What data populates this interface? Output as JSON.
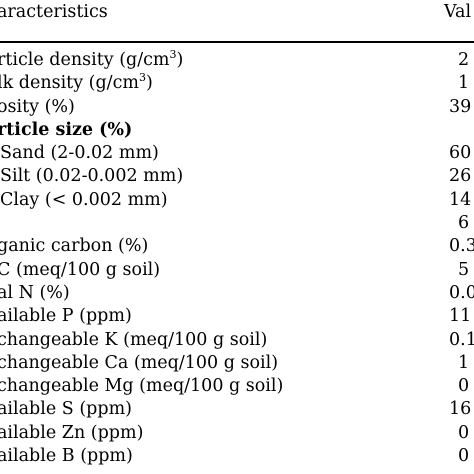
{
  "header": {
    "col1": "aracteristics",
    "col2": "Val"
  },
  "rows": [
    {
      "label": "rticle density (g/cm",
      "sup": "3",
      "label_end": ")",
      "value": "2"
    },
    {
      "label": "lk density (g/cm",
      "sup": "3",
      "label_end": ")",
      "value": "1"
    },
    {
      "label": "osity (%)",
      "value": "39"
    },
    {
      "label": "rticle size (%)",
      "value": "",
      "bold": true
    },
    {
      "label": "Sand (2-0.02 mm)",
      "value": "60",
      "indent": true
    },
    {
      "label": "Silt (0.02-0.002 mm)",
      "value": "26",
      "indent": true
    },
    {
      "label": "Clay (< 0.002 mm)",
      "value": "14",
      "indent": true
    },
    {
      "label": "",
      "value": "6"
    },
    {
      "label": "ganic carbon (%)",
      "value": "0.3"
    },
    {
      "label": "C (meq/100 g soil)",
      "value": "5"
    },
    {
      "label": "al N (%)",
      "value": "0.0"
    },
    {
      "label": "ailable P (ppm)",
      "value": "11"
    },
    {
      "label": "changeable K (meq/100 g soil)",
      "value": "0.1"
    },
    {
      "label": "changeable Ca (meq/100 g soil)",
      "value": "1"
    },
    {
      "label": "changeable Mg (meq/100 g soil)",
      "value": "0"
    },
    {
      "label": "ailable S (ppm)",
      "value": "16"
    },
    {
      "label": "ailable Zn (ppm)",
      "value": "0"
    },
    {
      "label": "ailable B (ppm)",
      "value": "0"
    }
  ]
}
